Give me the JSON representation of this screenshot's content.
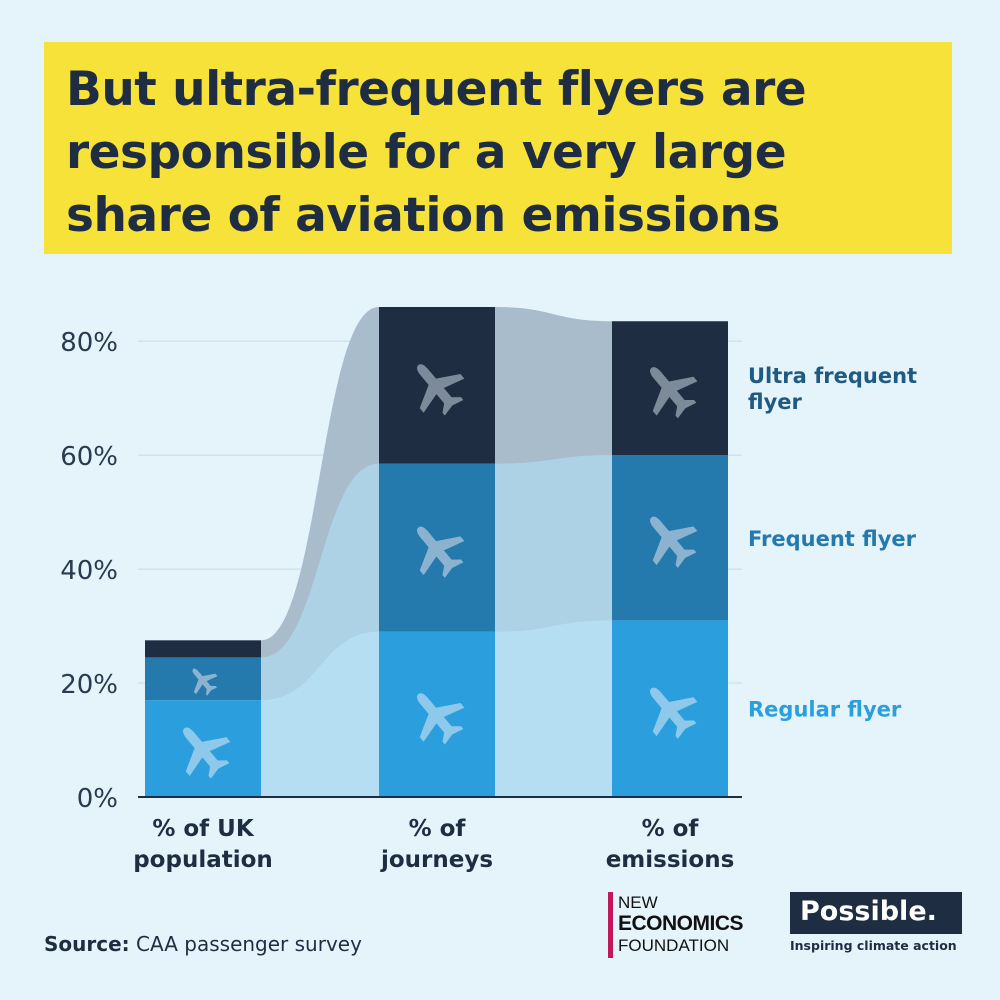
{
  "title": {
    "lines": [
      "But ultra-frequent flyers are",
      "responsible for a very large",
      "share of aviation emissions"
    ]
  },
  "chart_data": {
    "type": "bar",
    "stacked": true,
    "categories": [
      [
        "% of UK",
        "population"
      ],
      [
        "% of",
        "journeys"
      ],
      [
        "% of",
        "emissions"
      ]
    ],
    "series": [
      {
        "name": "Regular flyer",
        "values": [
          17,
          29,
          31
        ],
        "color": "#2b9fde"
      },
      {
        "name": "Frequent flyer",
        "values": [
          7.5,
          29.5,
          29
        ],
        "color": "#247aad"
      },
      {
        "name": "Ultra frequent flyer",
        "values": [
          3,
          27.5,
          23.5
        ],
        "color": "#1f2d42"
      }
    ],
    "yticks": [
      0,
      20,
      40,
      60,
      80
    ],
    "ytick_labels": [
      "0%",
      "20%",
      "40%",
      "60%",
      "80%"
    ],
    "ylim": [
      0,
      86
    ],
    "grid": true,
    "legend_placement": "right",
    "icon": "airplane-icon",
    "flow_colors": [
      "#b6def2",
      "#add2e6",
      "#a9bccb"
    ],
    "axis_color": "#1f2d42"
  },
  "footer": {
    "source_label": "Source:",
    "source_text": "CAA passenger survey"
  },
  "logos": {
    "nef_lines": [
      "NEW",
      "ECONOMICS",
      "FOUNDATION"
    ],
    "possible_word": "Possible.",
    "possible_tagline": "Inspiring climate action"
  }
}
